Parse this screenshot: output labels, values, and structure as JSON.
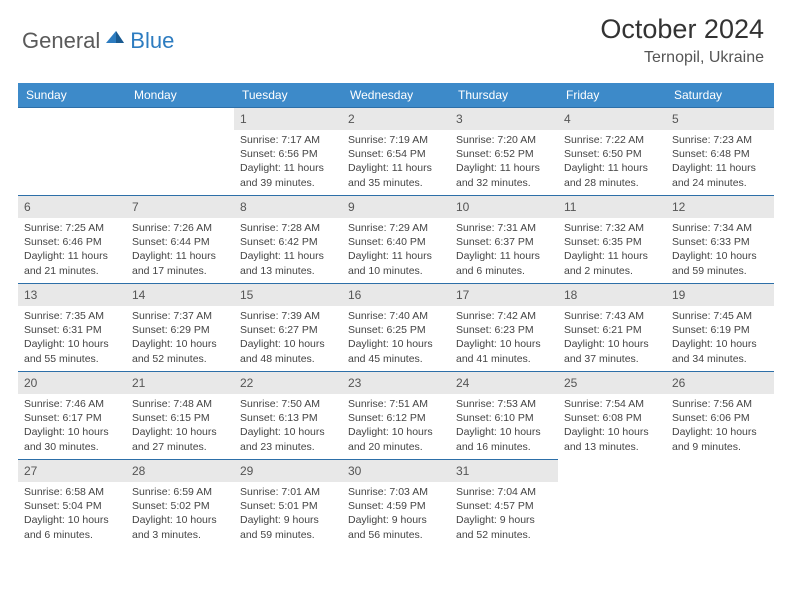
{
  "brand": {
    "text_a": "General",
    "text_b": "Blue"
  },
  "title": "October 2024",
  "location": "Ternopil, Ukraine",
  "colors": {
    "header_bg": "#3d8ac9",
    "rule": "#2d6fa8",
    "daynum_bg": "#e8e8e8",
    "brand_gray": "#5a5a5a",
    "brand_blue": "#2d7cc0"
  },
  "day_headers": [
    "Sunday",
    "Monday",
    "Tuesday",
    "Wednesday",
    "Thursday",
    "Friday",
    "Saturday"
  ],
  "weeks": [
    [
      null,
      null,
      {
        "n": "1",
        "sr": "Sunrise: 7:17 AM",
        "ss": "Sunset: 6:56 PM",
        "d1": "Daylight: 11 hours",
        "d2": "and 39 minutes."
      },
      {
        "n": "2",
        "sr": "Sunrise: 7:19 AM",
        "ss": "Sunset: 6:54 PM",
        "d1": "Daylight: 11 hours",
        "d2": "and 35 minutes."
      },
      {
        "n": "3",
        "sr": "Sunrise: 7:20 AM",
        "ss": "Sunset: 6:52 PM",
        "d1": "Daylight: 11 hours",
        "d2": "and 32 minutes."
      },
      {
        "n": "4",
        "sr": "Sunrise: 7:22 AM",
        "ss": "Sunset: 6:50 PM",
        "d1": "Daylight: 11 hours",
        "d2": "and 28 minutes."
      },
      {
        "n": "5",
        "sr": "Sunrise: 7:23 AM",
        "ss": "Sunset: 6:48 PM",
        "d1": "Daylight: 11 hours",
        "d2": "and 24 minutes."
      }
    ],
    [
      {
        "n": "6",
        "sr": "Sunrise: 7:25 AM",
        "ss": "Sunset: 6:46 PM",
        "d1": "Daylight: 11 hours",
        "d2": "and 21 minutes."
      },
      {
        "n": "7",
        "sr": "Sunrise: 7:26 AM",
        "ss": "Sunset: 6:44 PM",
        "d1": "Daylight: 11 hours",
        "d2": "and 17 minutes."
      },
      {
        "n": "8",
        "sr": "Sunrise: 7:28 AM",
        "ss": "Sunset: 6:42 PM",
        "d1": "Daylight: 11 hours",
        "d2": "and 13 minutes."
      },
      {
        "n": "9",
        "sr": "Sunrise: 7:29 AM",
        "ss": "Sunset: 6:40 PM",
        "d1": "Daylight: 11 hours",
        "d2": "and 10 minutes."
      },
      {
        "n": "10",
        "sr": "Sunrise: 7:31 AM",
        "ss": "Sunset: 6:37 PM",
        "d1": "Daylight: 11 hours",
        "d2": "and 6 minutes."
      },
      {
        "n": "11",
        "sr": "Sunrise: 7:32 AM",
        "ss": "Sunset: 6:35 PM",
        "d1": "Daylight: 11 hours",
        "d2": "and 2 minutes."
      },
      {
        "n": "12",
        "sr": "Sunrise: 7:34 AM",
        "ss": "Sunset: 6:33 PM",
        "d1": "Daylight: 10 hours",
        "d2": "and 59 minutes."
      }
    ],
    [
      {
        "n": "13",
        "sr": "Sunrise: 7:35 AM",
        "ss": "Sunset: 6:31 PM",
        "d1": "Daylight: 10 hours",
        "d2": "and 55 minutes."
      },
      {
        "n": "14",
        "sr": "Sunrise: 7:37 AM",
        "ss": "Sunset: 6:29 PM",
        "d1": "Daylight: 10 hours",
        "d2": "and 52 minutes."
      },
      {
        "n": "15",
        "sr": "Sunrise: 7:39 AM",
        "ss": "Sunset: 6:27 PM",
        "d1": "Daylight: 10 hours",
        "d2": "and 48 minutes."
      },
      {
        "n": "16",
        "sr": "Sunrise: 7:40 AM",
        "ss": "Sunset: 6:25 PM",
        "d1": "Daylight: 10 hours",
        "d2": "and 45 minutes."
      },
      {
        "n": "17",
        "sr": "Sunrise: 7:42 AM",
        "ss": "Sunset: 6:23 PM",
        "d1": "Daylight: 10 hours",
        "d2": "and 41 minutes."
      },
      {
        "n": "18",
        "sr": "Sunrise: 7:43 AM",
        "ss": "Sunset: 6:21 PM",
        "d1": "Daylight: 10 hours",
        "d2": "and 37 minutes."
      },
      {
        "n": "19",
        "sr": "Sunrise: 7:45 AM",
        "ss": "Sunset: 6:19 PM",
        "d1": "Daylight: 10 hours",
        "d2": "and 34 minutes."
      }
    ],
    [
      {
        "n": "20",
        "sr": "Sunrise: 7:46 AM",
        "ss": "Sunset: 6:17 PM",
        "d1": "Daylight: 10 hours",
        "d2": "and 30 minutes."
      },
      {
        "n": "21",
        "sr": "Sunrise: 7:48 AM",
        "ss": "Sunset: 6:15 PM",
        "d1": "Daylight: 10 hours",
        "d2": "and 27 minutes."
      },
      {
        "n": "22",
        "sr": "Sunrise: 7:50 AM",
        "ss": "Sunset: 6:13 PM",
        "d1": "Daylight: 10 hours",
        "d2": "and 23 minutes."
      },
      {
        "n": "23",
        "sr": "Sunrise: 7:51 AM",
        "ss": "Sunset: 6:12 PM",
        "d1": "Daylight: 10 hours",
        "d2": "and 20 minutes."
      },
      {
        "n": "24",
        "sr": "Sunrise: 7:53 AM",
        "ss": "Sunset: 6:10 PM",
        "d1": "Daylight: 10 hours",
        "d2": "and 16 minutes."
      },
      {
        "n": "25",
        "sr": "Sunrise: 7:54 AM",
        "ss": "Sunset: 6:08 PM",
        "d1": "Daylight: 10 hours",
        "d2": "and 13 minutes."
      },
      {
        "n": "26",
        "sr": "Sunrise: 7:56 AM",
        "ss": "Sunset: 6:06 PM",
        "d1": "Daylight: 10 hours",
        "d2": "and 9 minutes."
      }
    ],
    [
      {
        "n": "27",
        "sr": "Sunrise: 6:58 AM",
        "ss": "Sunset: 5:04 PM",
        "d1": "Daylight: 10 hours",
        "d2": "and 6 minutes."
      },
      {
        "n": "28",
        "sr": "Sunrise: 6:59 AM",
        "ss": "Sunset: 5:02 PM",
        "d1": "Daylight: 10 hours",
        "d2": "and 3 minutes."
      },
      {
        "n": "29",
        "sr": "Sunrise: 7:01 AM",
        "ss": "Sunset: 5:01 PM",
        "d1": "Daylight: 9 hours",
        "d2": "and 59 minutes."
      },
      {
        "n": "30",
        "sr": "Sunrise: 7:03 AM",
        "ss": "Sunset: 4:59 PM",
        "d1": "Daylight: 9 hours",
        "d2": "and 56 minutes."
      },
      {
        "n": "31",
        "sr": "Sunrise: 7:04 AM",
        "ss": "Sunset: 4:57 PM",
        "d1": "Daylight: 9 hours",
        "d2": "and 52 minutes."
      },
      null,
      null
    ]
  ]
}
